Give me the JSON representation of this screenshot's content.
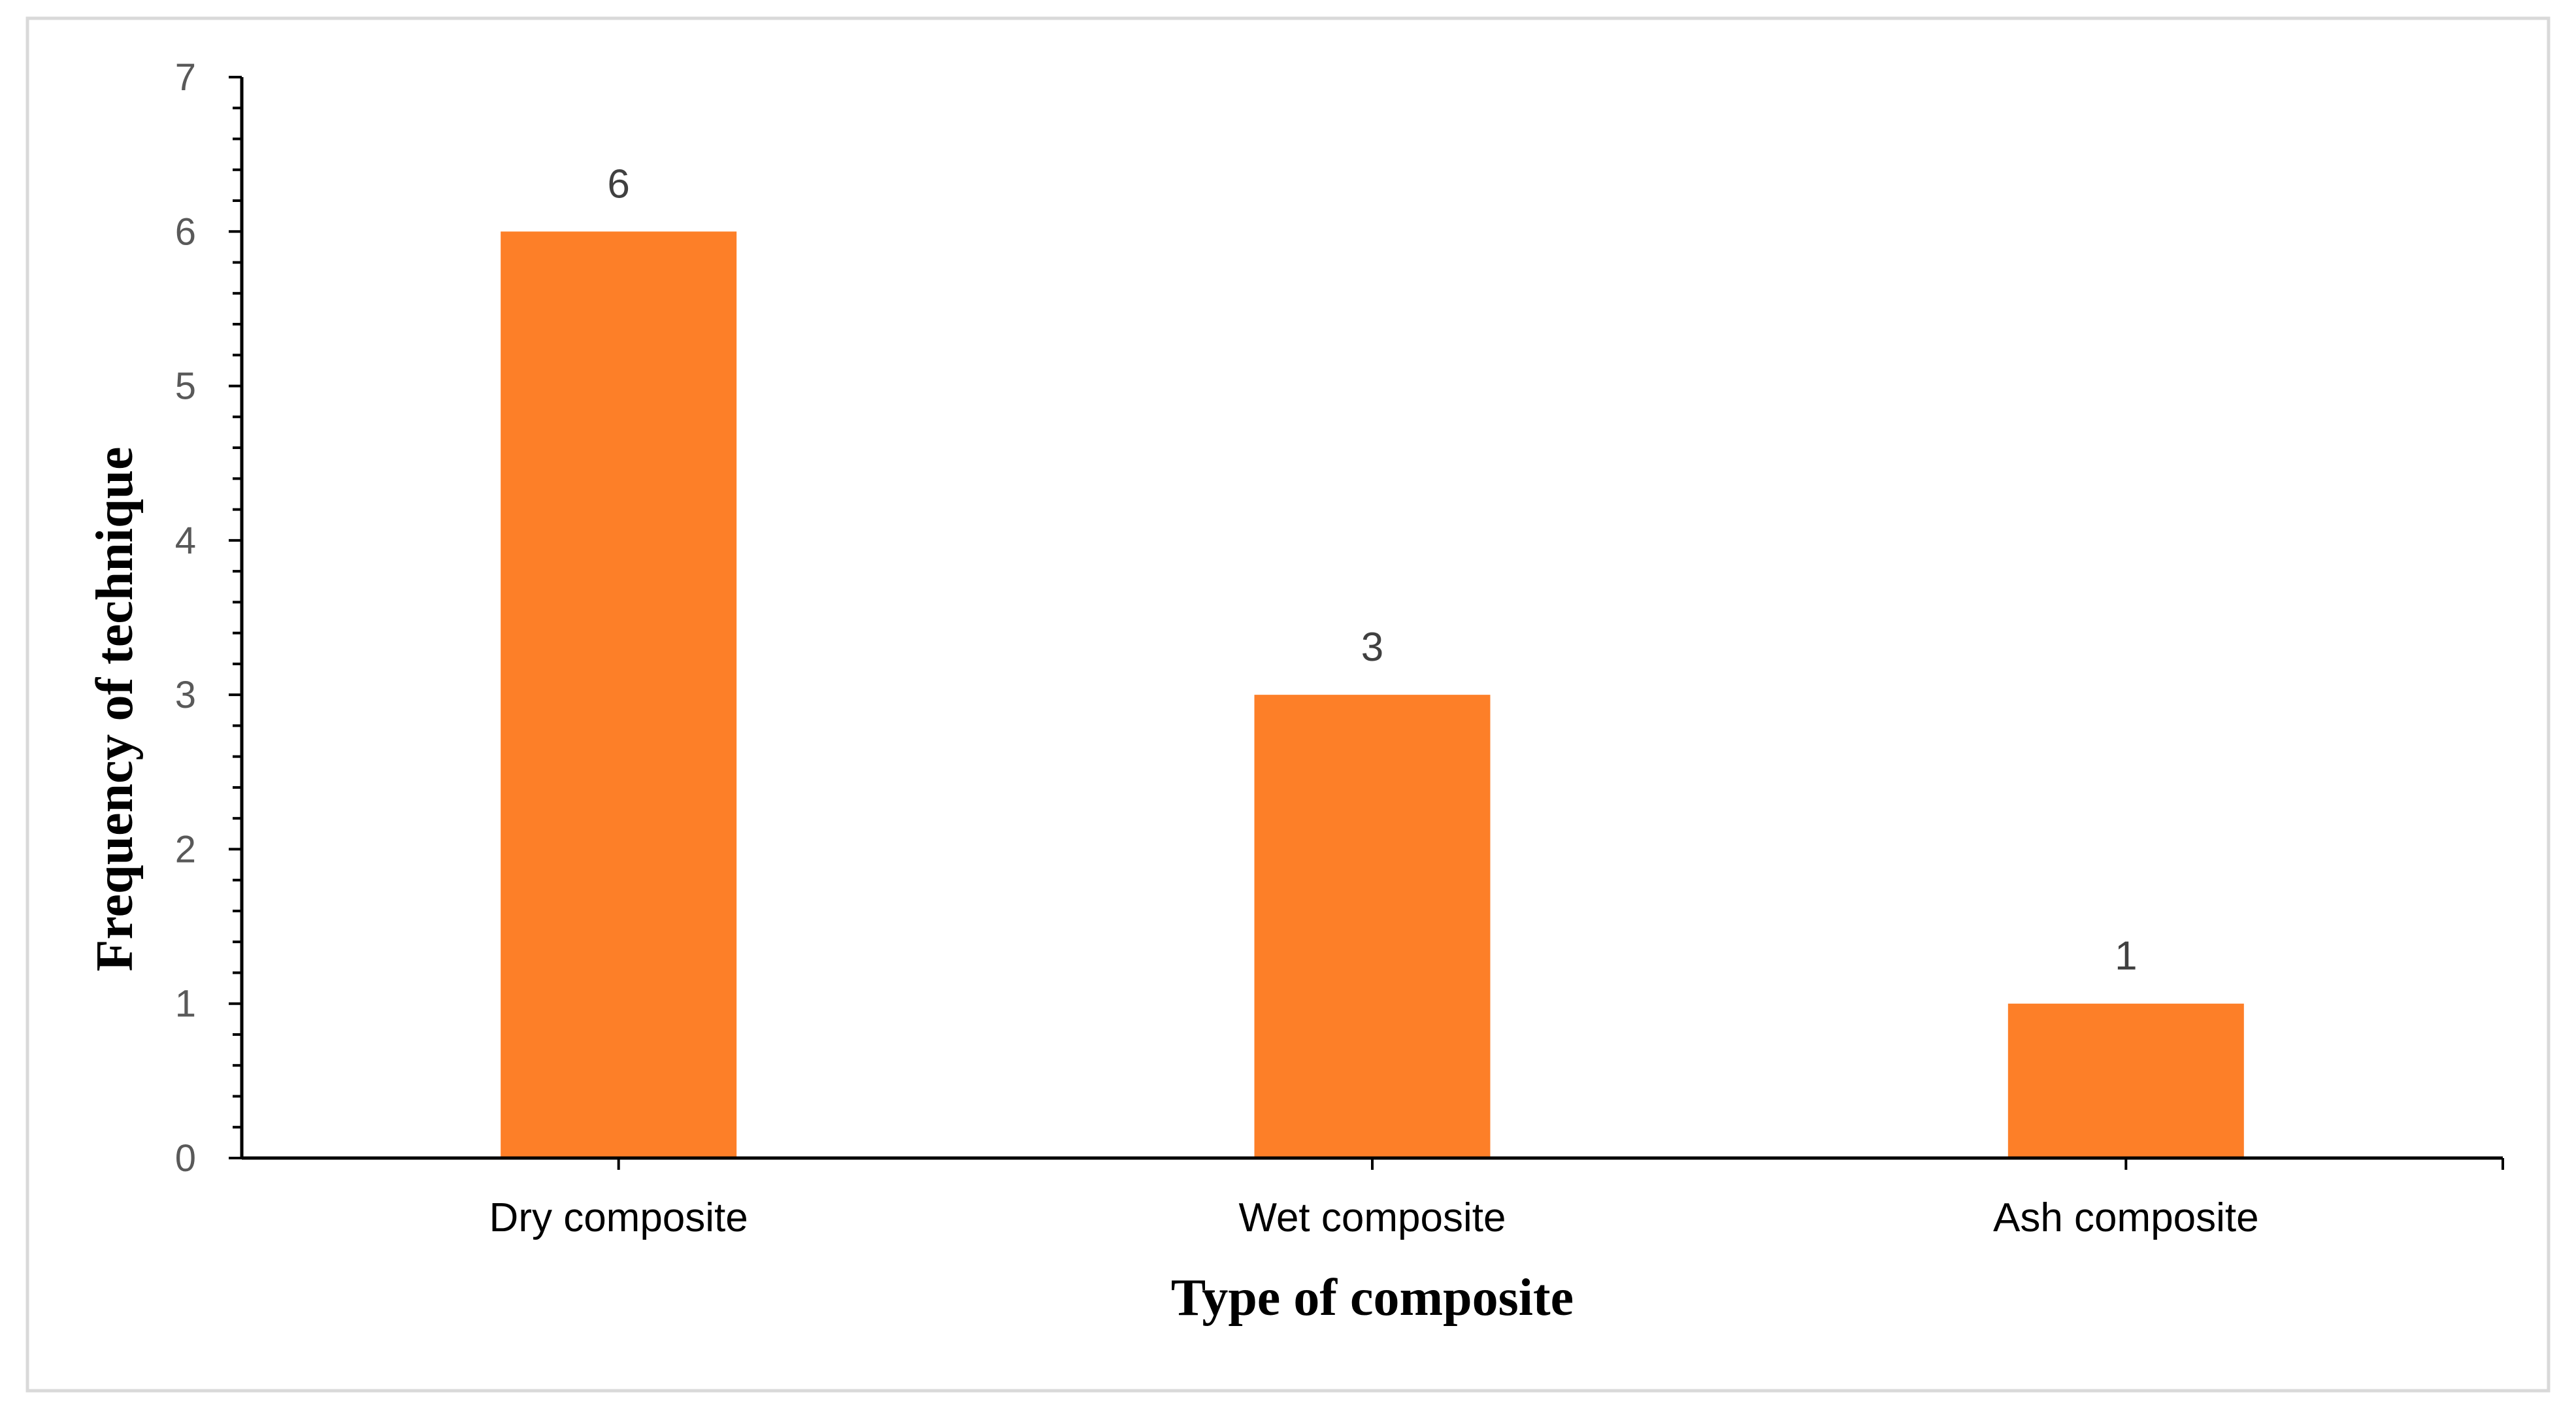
{
  "chart_data": {
    "type": "bar",
    "title": "",
    "categories": [
      "Dry composite",
      "Wet composite",
      "Ash composite"
    ],
    "values": [
      6,
      3,
      1
    ],
    "data_labels": [
      "6",
      "3",
      "1"
    ],
    "xlabel": "Type of composite",
    "ylabel": "Frequency of technique",
    "ylim": [
      0,
      7
    ],
    "yticks": [
      "0",
      "1",
      "2",
      "3",
      "4",
      "5",
      "6",
      "7"
    ],
    "grid": false,
    "legend": "none",
    "bar_color": "#fd7f28"
  }
}
